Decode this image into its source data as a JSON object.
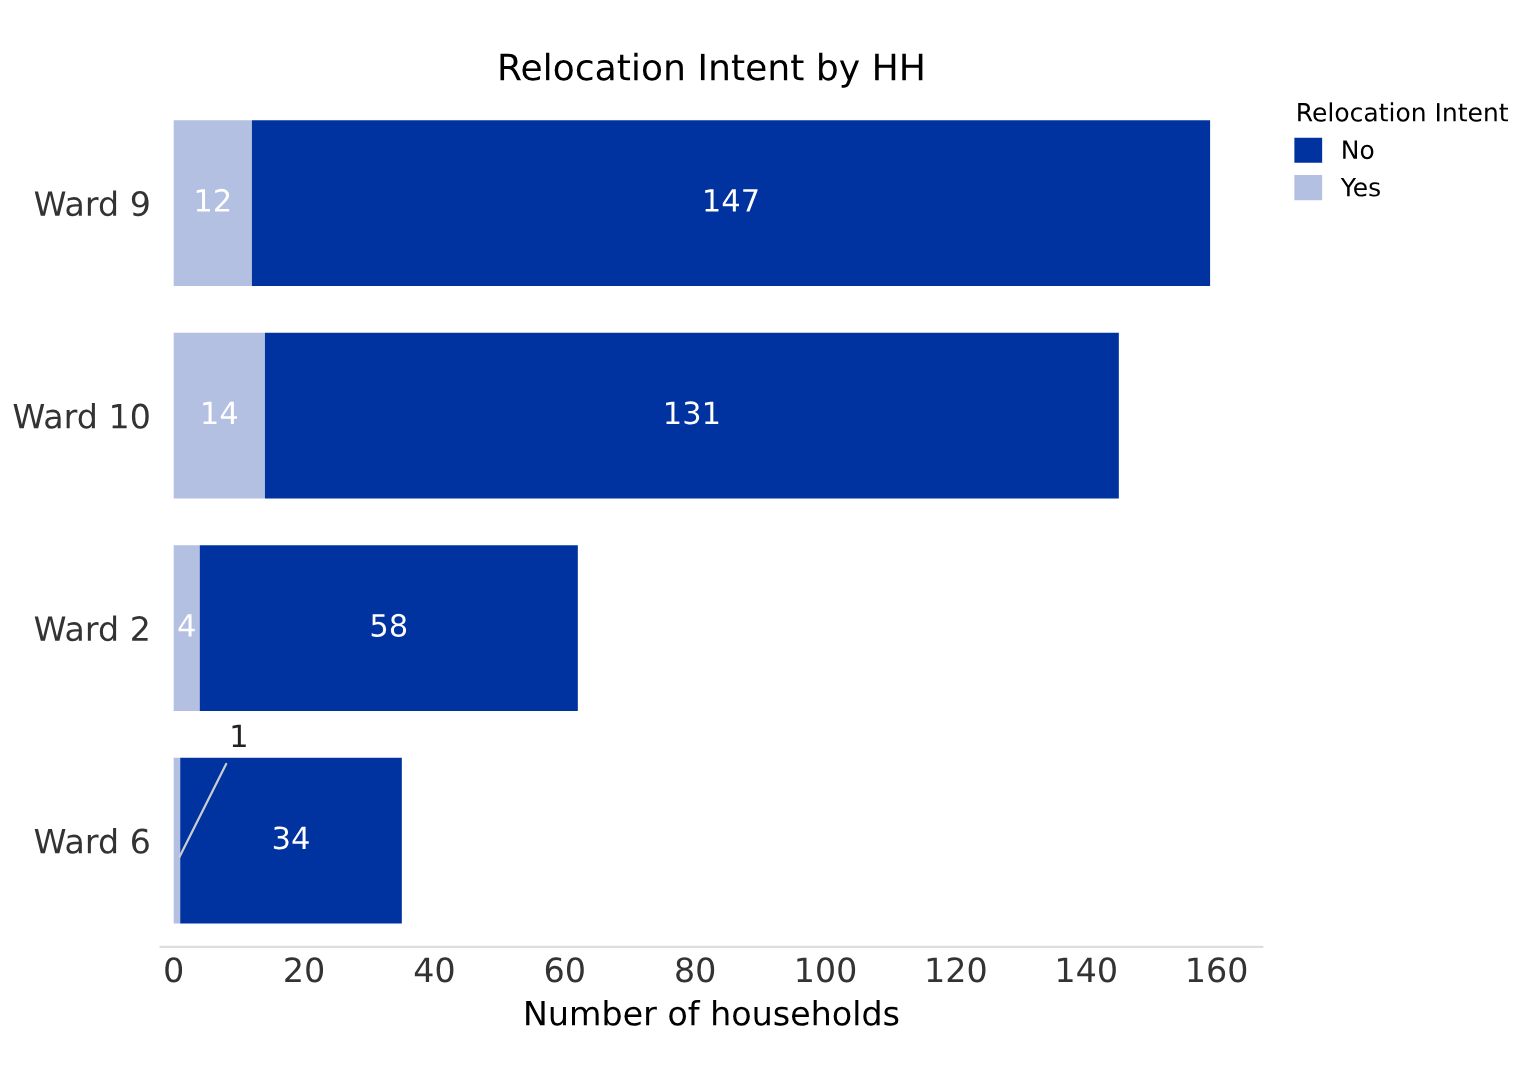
{
  "chart_data": {
    "type": "bar",
    "orientation": "horizontal",
    "stacked": true,
    "title": "Relocation Intent by HH",
    "xlabel": "Number of households",
    "legend_title": "Relocation Intent",
    "categories": [
      "Ward 9",
      "Ward 10",
      "Ward 2",
      "Ward 6"
    ],
    "series": [
      {
        "name": "Yes",
        "color": "#b4c0e2",
        "values": [
          12,
          14,
          4,
          1
        ]
      },
      {
        "name": "No",
        "color": "#0033a0",
        "values": [
          147,
          131,
          58,
          34
        ]
      }
    ],
    "xlim": [
      -2,
      167
    ],
    "xticks": [
      0,
      20,
      40,
      60,
      80,
      100,
      120,
      140,
      160
    ],
    "data_labels": true,
    "legend": "top right",
    "grid": false
  }
}
